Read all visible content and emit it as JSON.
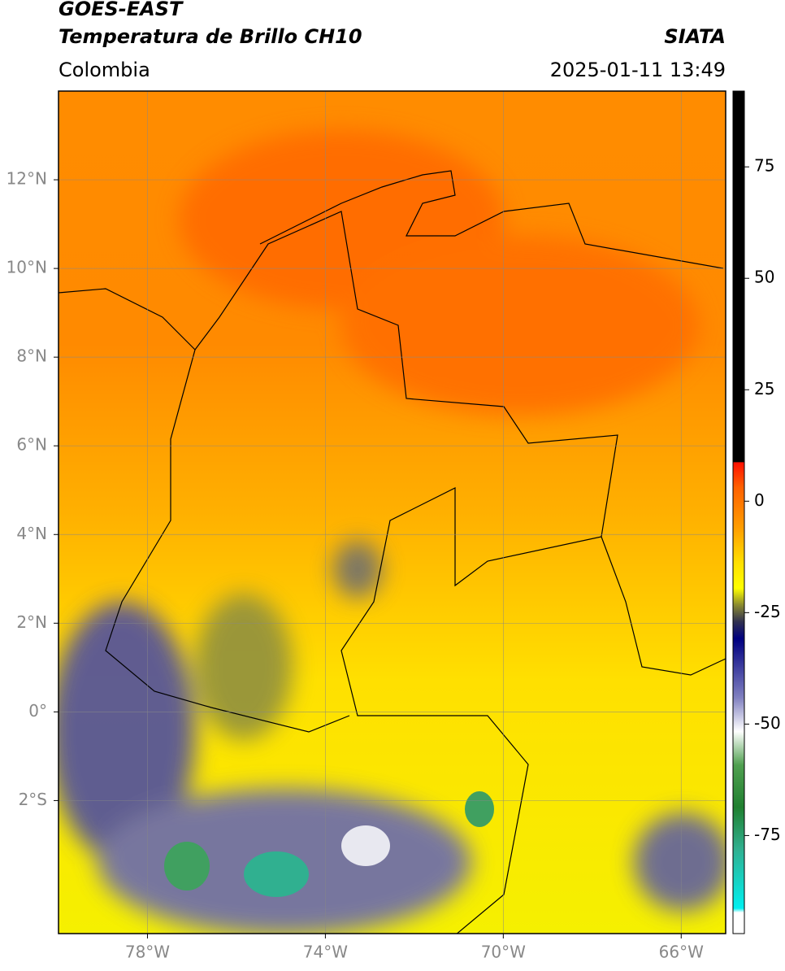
{
  "header": {
    "title": "GOES-EAST",
    "subtitle": "Temperatura de Brillo CH10",
    "source": "SIATA",
    "region": "Colombia",
    "timestamp": "2025-01-11 13:49"
  },
  "map": {
    "xlim": [
      -80,
      -65
    ],
    "ylim": [
      -5,
      14
    ],
    "grid": true,
    "xticks": [
      {
        "value": -78,
        "label": "78°W"
      },
      {
        "value": -74,
        "label": "74°W"
      },
      {
        "value": -70,
        "label": "70°W"
      },
      {
        "value": -66,
        "label": "66°W"
      }
    ],
    "yticks": [
      {
        "value": 12,
        "label": "12°N"
      },
      {
        "value": 10,
        "label": "10°N"
      },
      {
        "value": 8,
        "label": "8°N"
      },
      {
        "value": 6,
        "label": "6°N"
      },
      {
        "value": 4,
        "label": "4°N"
      },
      {
        "value": 2,
        "label": "2°N"
      },
      {
        "value": 0,
        "label": "0°"
      },
      {
        "value": -2,
        "label": "2°S"
      }
    ]
  },
  "colorbar": {
    "lim": [
      -97,
      92
    ],
    "ticks": [
      75,
      50,
      25,
      0,
      -25,
      -50,
      -75
    ]
  }
}
